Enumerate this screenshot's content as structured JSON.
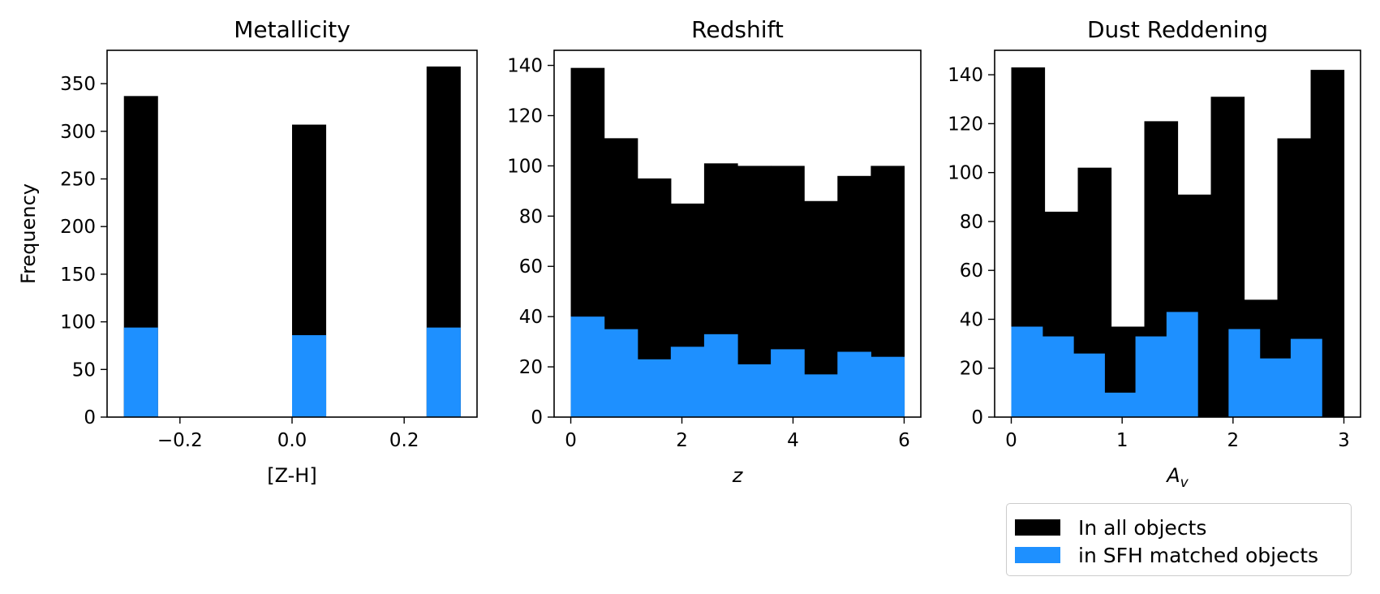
{
  "figure": {
    "ylabel": "Frequency"
  },
  "colors": {
    "all": "#000000",
    "matched": "#1e90ff"
  },
  "legend": {
    "placement": "below-right",
    "items": [
      {
        "label": "In all objects",
        "color": "#000000"
      },
      {
        "label": "in SFH matched objects",
        "color": "#1e90ff"
      }
    ]
  },
  "chart_data": [
    {
      "type": "bar",
      "title": "Metallicity",
      "xlabel": "[Z-H]",
      "xlabel_italic": false,
      "xlim": [
        -0.33,
        0.33
      ],
      "ylim": [
        0,
        385
      ],
      "xticks": [
        -0.2,
        0.0,
        0.2
      ],
      "xtick_labels": [
        "−0.2",
        "0.0",
        "0.2"
      ],
      "yticks": [
        0,
        50,
        100,
        150,
        200,
        250,
        300,
        350
      ],
      "bin_edges": [
        -0.3,
        -0.24,
        -0.18,
        -0.12,
        -0.06,
        0.0,
        0.06,
        0.12,
        0.18,
        0.24,
        0.3
      ],
      "series": [
        {
          "name": "In all objects",
          "values": [
            337,
            0,
            0,
            0,
            0,
            307,
            0,
            0,
            0,
            368
          ]
        },
        {
          "name": "in SFH matched objects",
          "values": [
            94,
            0,
            0,
            0,
            0,
            86,
            0,
            0,
            0,
            94
          ]
        }
      ]
    },
    {
      "type": "bar",
      "title": "Redshift",
      "xlabel": "z",
      "xlabel_italic": true,
      "xlim": [
        -0.3,
        6.3
      ],
      "ylim": [
        0,
        146
      ],
      "xticks": [
        0,
        2,
        4,
        6
      ],
      "xtick_labels": [
        "0",
        "2",
        "4",
        "6"
      ],
      "yticks": [
        0,
        20,
        40,
        60,
        80,
        100,
        120,
        140
      ],
      "bin_edges": [
        0,
        0.6,
        1.2,
        1.8,
        2.4,
        3.0,
        3.6,
        4.2,
        4.8,
        5.4,
        6.0
      ],
      "series": [
        {
          "name": "In all objects",
          "values": [
            139,
            111,
            95,
            85,
            101,
            100,
            100,
            86,
            96,
            100
          ]
        },
        {
          "name": "in SFH matched objects",
          "values": [
            40,
            35,
            23,
            28,
            33,
            21,
            27,
            17,
            26,
            24
          ]
        }
      ]
    },
    {
      "type": "bar",
      "title": "Dust Reddening",
      "xlabel": "A",
      "xlabel_sub": "v",
      "xlabel_italic": true,
      "xlim": [
        -0.15,
        3.15
      ],
      "ylim": [
        0,
        150
      ],
      "xticks": [
        0,
        1,
        2,
        3
      ],
      "xtick_labels": [
        "0",
        "1",
        "2",
        "3"
      ],
      "yticks": [
        0,
        20,
        40,
        60,
        80,
        100,
        120,
        140
      ],
      "bin_edges": [
        0,
        0.3,
        0.6,
        0.9,
        1.2,
        1.5,
        1.8,
        2.1,
        2.4,
        2.7,
        3.0
      ],
      "series": [
        {
          "name": "In all objects",
          "values": [
            143,
            84,
            102,
            37,
            121,
            91,
            131,
            48,
            114,
            142
          ]
        },
        {
          "name": "in SFH matched objects",
          "values": [
            37,
            33,
            26,
            10,
            33,
            43,
            0,
            36,
            24,
            32
          ]
        }
      ],
      "matched_bin_edges": [
        0,
        0.28,
        0.56,
        0.84,
        1.12,
        1.4,
        1.68,
        1.96,
        2.24,
        2.52,
        2.8
      ]
    }
  ]
}
